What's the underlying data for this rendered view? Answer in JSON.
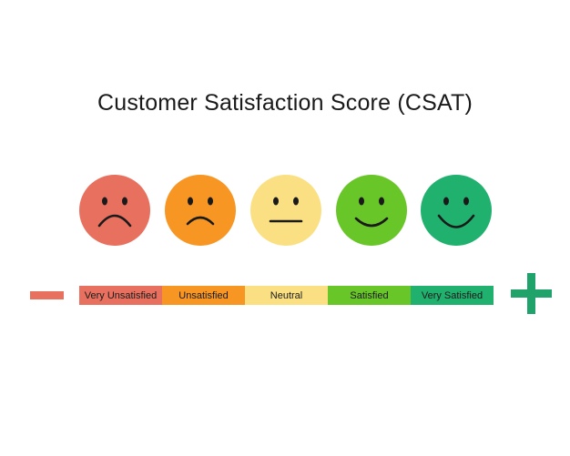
{
  "title": "Customer Satisfaction Score (CSAT)",
  "faces": [
    {
      "name": "very-unsatisfied-face",
      "color": "#e8705f",
      "mood": "very-sad"
    },
    {
      "name": "unsatisfied-face",
      "color": "#f79623",
      "mood": "sad"
    },
    {
      "name": "neutral-face",
      "color": "#fbe083",
      "mood": "neutral"
    },
    {
      "name": "satisfied-face",
      "color": "#69c629",
      "mood": "happy"
    },
    {
      "name": "very-satisfied-face",
      "color": "#20b16f",
      "mood": "very-happy"
    }
  ],
  "scale": [
    {
      "label": "Very Unsatisfied",
      "color": "#e8705f"
    },
    {
      "label": "Unsatisfied",
      "color": "#f79623"
    },
    {
      "label": "Neutral",
      "color": "#fbe083"
    },
    {
      "label": "Satisfied",
      "color": "#69c629"
    },
    {
      "label": "Very Satisfied",
      "color": "#20b16f"
    }
  ],
  "ends": {
    "minus_icon": "minus-icon",
    "minus_color": "#e8705f",
    "plus_icon": "plus-icon",
    "plus_color": "#20a36a"
  }
}
